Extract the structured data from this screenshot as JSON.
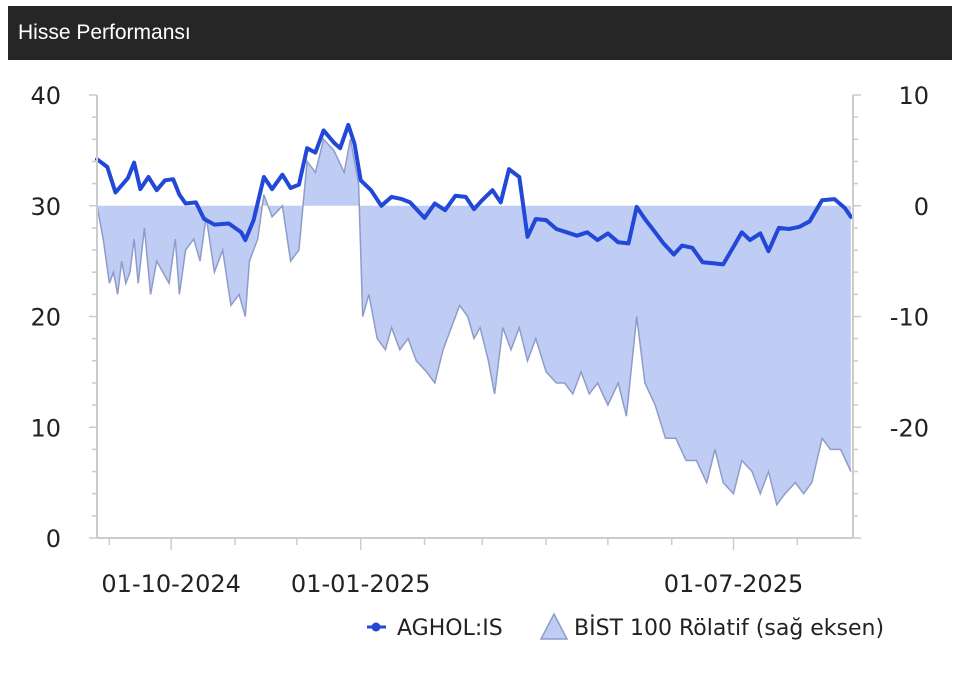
{
  "header": {
    "title": "Hisse Performansı"
  },
  "colors": {
    "line": "#2248d8",
    "area_fill": "#bfcdf5",
    "area_stroke": "#8e9cc8",
    "axis": "#cccccc",
    "header_bg": "#262626"
  },
  "chart_data": {
    "type": "line",
    "x_ticks": [
      "01-10-2024",
      "01-01-2025",
      "01-07-2025"
    ],
    "x_tick_dates": [
      "2024-10-01",
      "2025-01-01",
      "2025-07-01"
    ],
    "x_range": [
      "2024-08-26",
      "2025-08-28"
    ],
    "y_left": {
      "ticks": [
        "40",
        "30",
        "20",
        "10",
        "0"
      ],
      "range": [
        0,
        40
      ]
    },
    "y_right": {
      "ticks": [
        "10",
        "0",
        "-10",
        "-20"
      ],
      "range": [
        -30,
        10
      ]
    },
    "series": [
      {
        "name": "AGHOL:IS",
        "axis": "left",
        "kind": "line",
        "points": [
          [
            "2024-08-26",
            34.2
          ],
          [
            "2024-08-31",
            33.5
          ],
          [
            "2024-09-04",
            31.2
          ],
          [
            "2024-09-10",
            32.5
          ],
          [
            "2024-09-13",
            33.9
          ],
          [
            "2024-09-16",
            31.5
          ],
          [
            "2024-09-20",
            32.6
          ],
          [
            "2024-09-24",
            31.4
          ],
          [
            "2024-09-28",
            32.3
          ],
          [
            "2024-10-02",
            32.4
          ],
          [
            "2024-10-05",
            31.0
          ],
          [
            "2024-10-08",
            30.2
          ],
          [
            "2024-10-13",
            30.3
          ],
          [
            "2024-10-17",
            28.8
          ],
          [
            "2024-10-22",
            28.3
          ],
          [
            "2024-10-29",
            28.4
          ],
          [
            "2024-11-04",
            27.6
          ],
          [
            "2024-11-06",
            26.9
          ],
          [
            "2024-11-10",
            28.7
          ],
          [
            "2024-11-15",
            32.6
          ],
          [
            "2024-11-19",
            31.5
          ],
          [
            "2024-11-24",
            32.8
          ],
          [
            "2024-11-28",
            31.6
          ],
          [
            "2024-12-02",
            31.9
          ],
          [
            "2024-12-06",
            35.2
          ],
          [
            "2024-12-10",
            34.8
          ],
          [
            "2024-12-14",
            36.8
          ],
          [
            "2024-12-19",
            35.7
          ],
          [
            "2024-12-22",
            35.2
          ],
          [
            "2024-12-26",
            37.3
          ],
          [
            "2024-12-29",
            35.6
          ],
          [
            "2025-01-01",
            32.3
          ],
          [
            "2025-01-06",
            31.4
          ],
          [
            "2025-01-11",
            30.0
          ],
          [
            "2025-01-16",
            30.8
          ],
          [
            "2025-01-21",
            30.6
          ],
          [
            "2025-01-25",
            30.3
          ],
          [
            "2025-02-01",
            28.9
          ],
          [
            "2025-02-06",
            30.2
          ],
          [
            "2025-02-11",
            29.6
          ],
          [
            "2025-02-16",
            30.9
          ],
          [
            "2025-02-21",
            30.8
          ],
          [
            "2025-02-25",
            29.7
          ],
          [
            "2025-03-01",
            30.5
          ],
          [
            "2025-03-06",
            31.4
          ],
          [
            "2025-03-10",
            30.3
          ],
          [
            "2025-03-14",
            33.3
          ],
          [
            "2025-03-19",
            32.6
          ],
          [
            "2025-03-23",
            27.2
          ],
          [
            "2025-03-27",
            28.8
          ],
          [
            "2025-04-01",
            28.7
          ],
          [
            "2025-04-06",
            27.9
          ],
          [
            "2025-04-11",
            27.6
          ],
          [
            "2025-04-16",
            27.3
          ],
          [
            "2025-04-21",
            27.6
          ],
          [
            "2025-04-26",
            26.9
          ],
          [
            "2025-05-01",
            27.5
          ],
          [
            "2025-05-06",
            26.7
          ],
          [
            "2025-05-11",
            26.6
          ],
          [
            "2025-05-15",
            29.9
          ],
          [
            "2025-05-19",
            28.8
          ],
          [
            "2025-05-24",
            27.6
          ],
          [
            "2025-05-28",
            26.6
          ],
          [
            "2025-06-02",
            25.6
          ],
          [
            "2025-06-06",
            26.4
          ],
          [
            "2025-06-11",
            26.2
          ],
          [
            "2025-06-16",
            24.9
          ],
          [
            "2025-06-21",
            24.8
          ],
          [
            "2025-06-26",
            24.7
          ],
          [
            "2025-07-01",
            26.3
          ],
          [
            "2025-07-05",
            27.6
          ],
          [
            "2025-07-09",
            26.9
          ],
          [
            "2025-07-14",
            27.5
          ],
          [
            "2025-07-18",
            25.9
          ],
          [
            "2025-07-23",
            28.0
          ],
          [
            "2025-07-28",
            27.9
          ],
          [
            "2025-08-02",
            28.1
          ],
          [
            "2025-08-07",
            28.6
          ],
          [
            "2025-08-13",
            30.5
          ],
          [
            "2025-08-19",
            30.6
          ],
          [
            "2025-08-24",
            29.8
          ],
          [
            "2025-08-27",
            29.0
          ]
        ]
      },
      {
        "name": "BİST 100 Rölatif (sağ eksen)",
        "axis": "right",
        "kind": "area",
        "points": [
          [
            "2024-08-26",
            0
          ],
          [
            "2024-08-29",
            -3
          ],
          [
            "2024-09-01",
            -7
          ],
          [
            "2024-09-03",
            -6
          ],
          [
            "2024-09-05",
            -8
          ],
          [
            "2024-09-07",
            -5
          ],
          [
            "2024-09-09",
            -7
          ],
          [
            "2024-09-11",
            -6
          ],
          [
            "2024-09-13",
            -3
          ],
          [
            "2024-09-15",
            -7
          ],
          [
            "2024-09-18",
            -2
          ],
          [
            "2024-09-21",
            -8
          ],
          [
            "2024-09-24",
            -5
          ],
          [
            "2024-09-27",
            -6
          ],
          [
            "2024-09-30",
            -7
          ],
          [
            "2024-10-03",
            -3
          ],
          [
            "2024-10-05",
            -8
          ],
          [
            "2024-10-08",
            -4
          ],
          [
            "2024-10-12",
            -3
          ],
          [
            "2024-10-15",
            -5
          ],
          [
            "2024-10-18",
            -1
          ],
          [
            "2024-10-22",
            -6
          ],
          [
            "2024-10-26",
            -4
          ],
          [
            "2024-10-30",
            -9
          ],
          [
            "2024-11-03",
            -8
          ],
          [
            "2024-11-06",
            -10
          ],
          [
            "2024-11-08",
            -5
          ],
          [
            "2024-11-12",
            -3
          ],
          [
            "2024-11-15",
            1
          ],
          [
            "2024-11-19",
            -1
          ],
          [
            "2024-11-24",
            0
          ],
          [
            "2024-11-28",
            -5
          ],
          [
            "2024-12-02",
            -4
          ],
          [
            "2024-12-06",
            4
          ],
          [
            "2024-12-10",
            3
          ],
          [
            "2024-12-14",
            6
          ],
          [
            "2024-12-19",
            5
          ],
          [
            "2024-12-24",
            3
          ],
          [
            "2024-12-27",
            6
          ],
          [
            "2024-12-31",
            2
          ],
          [
            "2025-01-02",
            -10
          ],
          [
            "2025-01-05",
            -8
          ],
          [
            "2025-01-09",
            -12
          ],
          [
            "2025-01-13",
            -13
          ],
          [
            "2025-01-16",
            -11
          ],
          [
            "2025-01-20",
            -13
          ],
          [
            "2025-01-24",
            -12
          ],
          [
            "2025-01-28",
            -14
          ],
          [
            "2025-02-02",
            -15
          ],
          [
            "2025-02-06",
            -16
          ],
          [
            "2025-02-10",
            -13
          ],
          [
            "2025-02-14",
            -11
          ],
          [
            "2025-02-18",
            -9
          ],
          [
            "2025-02-22",
            -10
          ],
          [
            "2025-02-25",
            -12
          ],
          [
            "2025-02-28",
            -11
          ],
          [
            "2025-03-04",
            -14
          ],
          [
            "2025-03-07",
            -17
          ],
          [
            "2025-03-11",
            -11
          ],
          [
            "2025-03-15",
            -13
          ],
          [
            "2025-03-19",
            -11
          ],
          [
            "2025-03-23",
            -14
          ],
          [
            "2025-03-27",
            -12
          ],
          [
            "2025-04-01",
            -15
          ],
          [
            "2025-04-06",
            -16
          ],
          [
            "2025-04-10",
            -16
          ],
          [
            "2025-04-14",
            -17
          ],
          [
            "2025-04-18",
            -15
          ],
          [
            "2025-04-22",
            -17
          ],
          [
            "2025-04-26",
            -16
          ],
          [
            "2025-05-01",
            -18
          ],
          [
            "2025-05-06",
            -16
          ],
          [
            "2025-05-10",
            -19
          ],
          [
            "2025-05-15",
            -10
          ],
          [
            "2025-05-19",
            -16
          ],
          [
            "2025-05-24",
            -18
          ],
          [
            "2025-05-29",
            -21
          ],
          [
            "2025-06-03",
            -21
          ],
          [
            "2025-06-08",
            -23
          ],
          [
            "2025-06-13",
            -23
          ],
          [
            "2025-06-18",
            -25
          ],
          [
            "2025-06-22",
            -22
          ],
          [
            "2025-06-26",
            -25
          ],
          [
            "2025-07-01",
            -26
          ],
          [
            "2025-07-05",
            -23
          ],
          [
            "2025-07-10",
            -24
          ],
          [
            "2025-07-14",
            -26
          ],
          [
            "2025-07-18",
            -24
          ],
          [
            "2025-07-22",
            -27
          ],
          [
            "2025-07-26",
            -26
          ],
          [
            "2025-07-31",
            -25
          ],
          [
            "2025-08-04",
            -26
          ],
          [
            "2025-08-08",
            -25
          ],
          [
            "2025-08-13",
            -21
          ],
          [
            "2025-08-17",
            -22
          ],
          [
            "2025-08-22",
            -22
          ],
          [
            "2025-08-27",
            -24
          ]
        ]
      }
    ],
    "legend": [
      {
        "label": "AGHOL:IS",
        "symbol": "line"
      },
      {
        "label": "BİST 100 Rölatif (sağ eksen)",
        "symbol": "triangle"
      }
    ],
    "legend_position": "bottom-right",
    "grid": false
  }
}
